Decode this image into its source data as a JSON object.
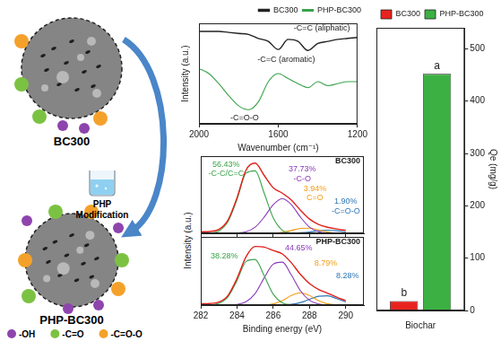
{
  "diagram": {
    "before": "BC300",
    "after": "PHP-BC300",
    "process": [
      "PHP",
      "Modification"
    ],
    "legend": [
      {
        "label": "-OH",
        "color": "#8e44ad"
      },
      {
        "label": "-C=O",
        "color": "#7cc242"
      },
      {
        "label": "-C=O-O",
        "color": "#f4a12b"
      }
    ]
  },
  "chart_data": [
    {
      "type": "line",
      "x_label": "Wavenumber (cm⁻¹)",
      "y_label": "Intensity (a.u.)",
      "x": [
        2000,
        1950,
        1900,
        1850,
        1800,
        1750,
        1700,
        1650,
        1600,
        1550,
        1500,
        1450,
        1400,
        1350,
        1300,
        1250,
        1200
      ],
      "xlim": [
        2000,
        1200
      ],
      "xticks": [
        2000,
        1600,
        1200
      ],
      "ylim": [
        0,
        100
      ],
      "tick_labels": "x",
      "grid": false,
      "legend": "top-right",
      "annotations": [
        "-C=C (aliphatic)",
        "-C=C (aromatic)",
        "-C=O-O"
      ],
      "series": [
        {
          "name": "BC300",
          "color": "#222222",
          "values": [
            92,
            92,
            92,
            91,
            90,
            89,
            85,
            82,
            74,
            84,
            82,
            73,
            80,
            82,
            84,
            85,
            86
          ]
        },
        {
          "name": "PHP-BC300",
          "color": "#3aa34a",
          "values": [
            55,
            50,
            40,
            28,
            18,
            14,
            22,
            42,
            50,
            45,
            40,
            36,
            42,
            38,
            40,
            42,
            42
          ]
        }
      ]
    },
    {
      "type": "line",
      "title": "BC300",
      "y_label": "Intensity (a.u.)",
      "x": [
        282,
        282.5,
        283,
        283.5,
        284,
        284.5,
        285,
        285.5,
        286,
        286.5,
        287,
        287.5,
        288,
        288.5,
        289,
        289.5,
        290
      ],
      "xlim": [
        282,
        291
      ],
      "xticks": [
        282,
        284,
        286,
        288,
        290
      ],
      "ylim": [
        0,
        100
      ],
      "tick_labels": false,
      "grid": false,
      "series": [
        {
          "color": "#e0201b",
          "values": [
            2,
            2.4,
            5,
            17,
            46,
            82,
            91,
            75,
            59,
            52,
            43,
            30,
            18.5,
            11.6,
            7.9,
            5.6,
            3.8
          ]
        },
        {
          "name": "-C-C/C=C",
          "label": "56.43%",
          "color": "#3aa34a",
          "values": [
            0,
            0.4,
            3,
            15,
            44,
            78,
            81,
            52,
            20,
            4,
            0.6,
            0,
            0,
            0,
            0,
            0,
            0
          ]
        },
        {
          "name": "-C-O",
          "label": "37.73%",
          "color": "#8a3ab9",
          "values": [
            0,
            0,
            0,
            0,
            0.3,
            2,
            8,
            21,
            37,
            45,
            37,
            21,
            8,
            2,
            0.3,
            0,
            0
          ]
        },
        {
          "name": "C=O",
          "label": "3.94%",
          "color": "#f39c12",
          "values": [
            0,
            0,
            0,
            0,
            0,
            0,
            0,
            0,
            0,
            1.3,
            3.6,
            6.4,
            6.7,
            4.3,
            1.6,
            0.3,
            0
          ]
        },
        {
          "name": "-C=O-O",
          "label": "1.90%",
          "color": "#2e75b6",
          "values": [
            0,
            0,
            0,
            0,
            0,
            0,
            0,
            0,
            0,
            0,
            0,
            0.7,
            1.8,
            3.3,
            4,
            3.3,
            1.8
          ]
        }
      ]
    },
    {
      "type": "line",
      "title": "PHP-BC300",
      "x_label": "Binding energy (eV)",
      "x": [
        282,
        282.5,
        283,
        283.5,
        284,
        284.5,
        285,
        285.5,
        286,
        286.5,
        287,
        287.5,
        288,
        288.5,
        289,
        289.5,
        290
      ],
      "xlim": [
        282,
        291
      ],
      "xticks": [
        282,
        284,
        286,
        288,
        290
      ],
      "ylim": [
        0,
        100
      ],
      "tick_labels": "x",
      "grid": false,
      "series": [
        {
          "color": "#e0201b",
          "values": [
            2,
            2.3,
            4.5,
            14,
            39,
            71,
            86,
            85,
            80,
            75,
            62,
            45,
            31.5,
            23,
            17.4,
            11.8,
            6.5
          ]
        },
        {
          "label": "38.28%",
          "color": "#3aa34a",
          "values": [
            0,
            0.3,
            2.5,
            12,
            36,
            64,
            67,
            43,
            16,
            3.3,
            0.5,
            0,
            0,
            0,
            0,
            0,
            0
          ]
        },
        {
          "label": "44.65%",
          "color": "#8a3ab9",
          "values": [
            0,
            0,
            0,
            0,
            1,
            5,
            17,
            40,
            60,
            63,
            44,
            21,
            7,
            1.5,
            0,
            0,
            0
          ]
        },
        {
          "label": "8.79%",
          "color": "#f39c12",
          "values": [
            0,
            0,
            0,
            0,
            0,
            0,
            0,
            0,
            1.8,
            6.5,
            14,
            18,
            14,
            6.5,
            1.8,
            0.3,
            0
          ]
        },
        {
          "label": "8.28%",
          "color": "#2e75b6",
          "values": [
            0,
            0,
            0,
            0,
            0,
            0,
            0,
            0,
            0,
            0,
            1.1,
            3.8,
            8.5,
            13,
            13.6,
            9.5,
            4.5
          ]
        }
      ]
    },
    {
      "type": "bar",
      "y_label": "Qe (mg/g)",
      "categories": [
        "Biochar"
      ],
      "ylim": [
        0,
        540
      ],
      "yticks": [
        0,
        100,
        200,
        300,
        400,
        500
      ],
      "grid": false,
      "legend": "top-left",
      "series": [
        {
          "name": "BC300",
          "color": "#e8231f",
          "values": [
            18
          ],
          "letters": [
            "b"
          ]
        },
        {
          "name": "PHP-BC300",
          "color": "#3cb043",
          "values": [
            452
          ],
          "letters": [
            "a"
          ]
        }
      ]
    }
  ]
}
